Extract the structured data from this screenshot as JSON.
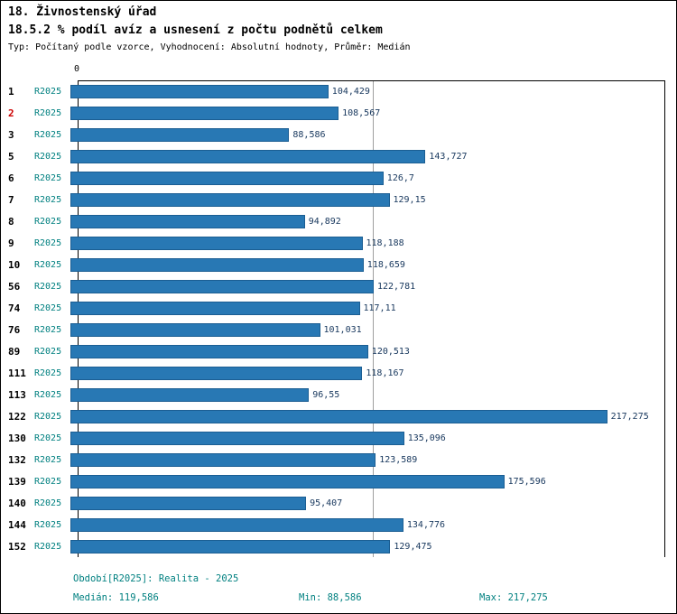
{
  "header": {
    "title": "18. Živnostenský úřad",
    "subtitle": "18.5.2 % podíl avíz a usnesení z počtu podnětů celkem",
    "meta": "Typ: Počítaný podle vzorce, Vyhodnocení: Absolutní hodnoty, Průměr: Medián"
  },
  "chart_data": {
    "type": "bar",
    "orientation": "horizontal",
    "title": "18.5.2 % podíl avíz a usnesení z počtu podnětů celkem",
    "series_label": "R2025",
    "axis_origin_label": "0",
    "xlim": [
      0,
      237.5
    ],
    "median_value": 119.586,
    "grid": "single vertical median gridline",
    "legend": "none",
    "categories": [
      "1",
      "2",
      "3",
      "5",
      "6",
      "7",
      "8",
      "9",
      "10",
      "56",
      "74",
      "76",
      "89",
      "111",
      "113",
      "122",
      "130",
      "132",
      "139",
      "140",
      "144",
      "152"
    ],
    "highlighted_category": "2",
    "values": [
      104.429,
      108.567,
      88.586,
      143.727,
      126.7,
      129.15,
      94.892,
      118.188,
      118.659,
      122.781,
      117.11,
      101.031,
      120.513,
      118.167,
      96.55,
      217.275,
      135.096,
      123.589,
      175.596,
      95.407,
      134.776,
      129.475
    ],
    "value_labels": [
      "104,429",
      "108,567",
      "88,586",
      "143,727",
      "126,7",
      "129,15",
      "94,892",
      "118,188",
      "118,659",
      "122,781",
      "117,11",
      "101,031",
      "120,513",
      "118,167",
      "96,55",
      "217,275",
      "135,096",
      "123,589",
      "175,596",
      "95,407",
      "134,776",
      "129,475"
    ],
    "colors": {
      "bar": "#2878b4",
      "bar_border": "#1b5e93",
      "series_label": "#008080",
      "value_label": "#17375d",
      "highlight": "#cc0000",
      "median_line": "#9e9e9e"
    }
  },
  "footer": {
    "period": "Období[R2025]: Realita - 2025",
    "median": "Medián: 119,586",
    "min": "Min: 88,586",
    "max": "Max: 217,275"
  }
}
